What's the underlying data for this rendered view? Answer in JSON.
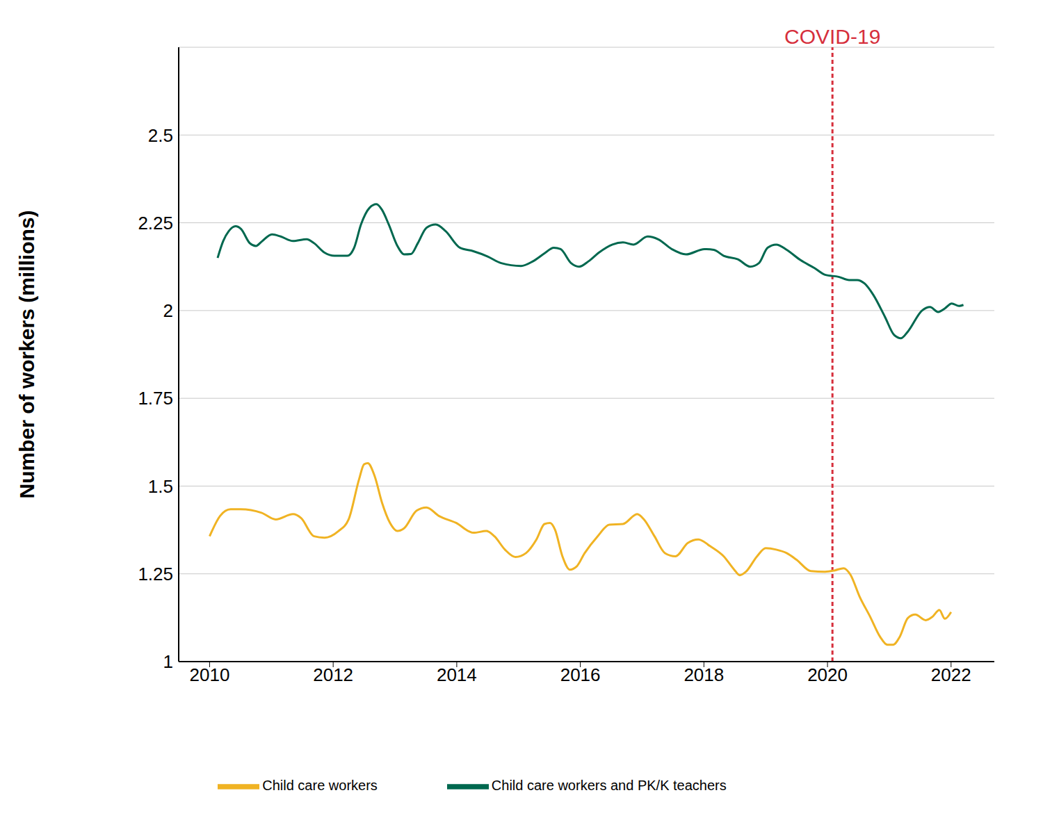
{
  "chart_data": {
    "type": "line",
    "y_label": "Number of workers (millions)",
    "xlim": [
      2009.5,
      2022.7
    ],
    "xticks": [
      2010,
      2012,
      2014,
      2016,
      2018,
      2020,
      2022
    ],
    "ylim": [
      1,
      2.75
    ],
    "yticks": [
      1,
      1.25,
      1.5,
      1.75,
      2,
      2.25,
      2.5
    ],
    "grid": true,
    "legend": "bottom",
    "annotations": [
      {
        "text": "COVID-19",
        "x": 2020.08,
        "color": "#d62f3c",
        "line_style": "dashed"
      }
    ],
    "series": [
      {
        "name": "Child care workers",
        "color": "#f0b323",
        "x": [
          2010.0,
          2010.17,
          2010.34,
          2010.5,
          2010.84,
          2011.07,
          2011.35,
          2011.48,
          2011.69,
          2011.86,
          2012.08,
          2012.25,
          2012.42,
          2012.5,
          2012.56,
          2012.67,
          2012.79,
          2012.92,
          2013.04,
          2013.15,
          2013.35,
          2013.51,
          2013.71,
          2013.99,
          2014.27,
          2014.48,
          2014.61,
          2014.78,
          2014.95,
          2015.12,
          2015.29,
          2015.42,
          2015.51,
          2015.59,
          2015.71,
          2015.83,
          2015.94,
          2016.07,
          2016.28,
          2016.47,
          2016.69,
          2016.92,
          2017.03,
          2017.2,
          2017.37,
          2017.54,
          2017.74,
          2017.91,
          2018.1,
          2018.32,
          2018.49,
          2018.58,
          2018.68,
          2018.86,
          2019.0,
          2019.17,
          2019.34,
          2019.5,
          2019.73,
          2019.96,
          2020.12,
          2020.26,
          2020.37,
          2020.52,
          2020.69,
          2020.85,
          2020.97,
          2021.06,
          2021.17,
          2021.3,
          2021.42,
          2021.59,
          2021.7,
          2021.81,
          2021.9,
          2022.0
        ],
        "values": [
          1.357,
          1.415,
          1.434,
          1.434,
          1.424,
          1.405,
          1.42,
          1.409,
          1.357,
          1.353,
          1.371,
          1.405,
          1.52,
          1.562,
          1.565,
          1.529,
          1.453,
          1.395,
          1.372,
          1.38,
          1.43,
          1.439,
          1.415,
          1.395,
          1.367,
          1.372,
          1.357,
          1.319,
          1.298,
          1.309,
          1.348,
          1.392,
          1.395,
          1.376,
          1.3,
          1.262,
          1.271,
          1.309,
          1.357,
          1.39,
          1.392,
          1.42,
          1.405,
          1.357,
          1.309,
          1.3,
          1.338,
          1.348,
          1.329,
          1.3,
          1.262,
          1.246,
          1.256,
          1.3,
          1.323,
          1.319,
          1.309,
          1.29,
          1.258,
          1.256,
          1.26,
          1.266,
          1.248,
          1.185,
          1.128,
          1.071,
          1.048,
          1.048,
          1.071,
          1.124,
          1.134,
          1.118,
          1.128,
          1.147,
          1.122,
          1.141
        ]
      },
      {
        "name": "Child care workers and PK/K teachers",
        "color": "#00684f",
        "x": [
          2010.13,
          2010.22,
          2010.31,
          2010.42,
          2010.51,
          2010.65,
          2010.75,
          2010.84,
          2011.01,
          2011.15,
          2011.35,
          2011.57,
          2011.69,
          2011.86,
          2012.02,
          2012.23,
          2012.34,
          2012.45,
          2012.59,
          2012.7,
          2012.79,
          2012.9,
          2013.04,
          2013.15,
          2013.26,
          2013.37,
          2013.51,
          2013.66,
          2013.82,
          2014.05,
          2014.27,
          2014.5,
          2014.72,
          2015.04,
          2015.23,
          2015.42,
          2015.57,
          2015.68,
          2015.85,
          2015.98,
          2016.13,
          2016.3,
          2016.52,
          2016.69,
          2016.86,
          2017.09,
          2017.26,
          2017.48,
          2017.71,
          2018.01,
          2018.16,
          2018.32,
          2018.55,
          2018.75,
          2018.89,
          2019.03,
          2019.17,
          2019.34,
          2019.56,
          2019.79,
          2019.96,
          2020.18,
          2020.35,
          2020.48,
          2020.6,
          2020.74,
          2020.93,
          2021.08,
          2021.19,
          2021.3,
          2021.53,
          2021.66,
          2021.79,
          2021.9,
          2022.01,
          2022.13,
          2022.2
        ],
        "values": [
          2.15,
          2.198,
          2.226,
          2.24,
          2.232,
          2.192,
          2.184,
          2.196,
          2.217,
          2.211,
          2.198,
          2.203,
          2.192,
          2.165,
          2.156,
          2.156,
          2.179,
          2.245,
          2.293,
          2.303,
          2.287,
          2.245,
          2.184,
          2.16,
          2.161,
          2.192,
          2.236,
          2.245,
          2.226,
          2.179,
          2.169,
          2.154,
          2.135,
          2.127,
          2.14,
          2.163,
          2.179,
          2.175,
          2.135,
          2.125,
          2.14,
          2.165,
          2.188,
          2.194,
          2.188,
          2.211,
          2.203,
          2.175,
          2.16,
          2.175,
          2.173,
          2.156,
          2.146,
          2.125,
          2.135,
          2.179,
          2.188,
          2.173,
          2.144,
          2.121,
          2.102,
          2.096,
          2.087,
          2.087,
          2.077,
          2.045,
          1.982,
          1.93,
          1.921,
          1.94,
          2.0,
          2.01,
          1.996,
          2.006,
          2.02,
          2.013,
          2.016
        ]
      }
    ]
  }
}
